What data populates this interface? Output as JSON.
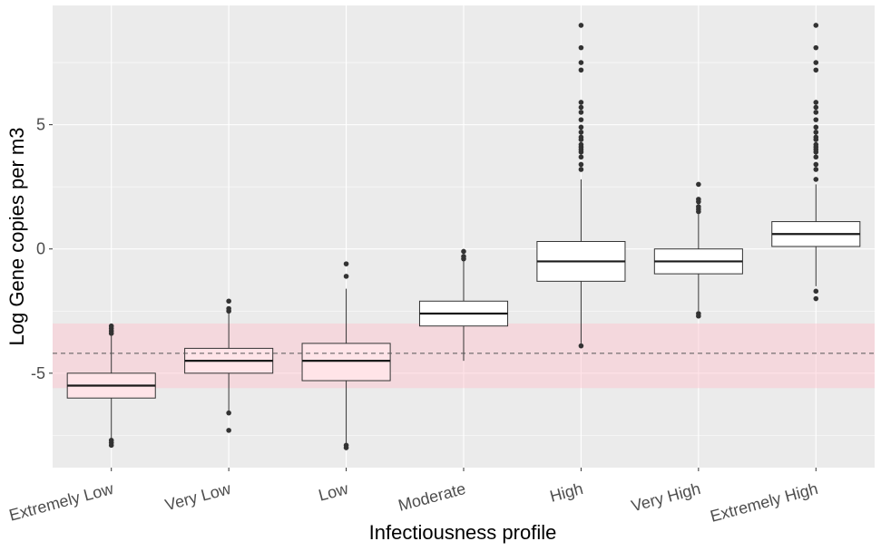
{
  "chart_data": {
    "type": "boxplot",
    "title": "",
    "xlabel": "Infectiousness profile",
    "ylabel": "Log Gene copies per m3",
    "categories": [
      "Extremely Low",
      "Very Low",
      "Low",
      "Moderate",
      "High",
      "Very High",
      "Extremely High"
    ],
    "y_ticks": [
      -5,
      0,
      5
    ],
    "y_tick_labels": [
      "-5",
      "0",
      "5"
    ],
    "ylim": [
      -8.8,
      9.8
    ],
    "grid": true,
    "legend": "none",
    "colors": {
      "panel_background": "#EBEBEB",
      "box_fill_in_band": "#FFE4E8",
      "box_fill_default": "#FFFFFF",
      "band_fill": "#FFC0CB",
      "reference_line": "#555555",
      "outlier": "#333333"
    },
    "threshold_band": {
      "ymin": -5.6,
      "ymax": -3.0
    },
    "reference_line": {
      "y": -4.2,
      "style": "dashed"
    },
    "boxes": [
      {
        "category": "Extremely Low",
        "whisker_low": -7.6,
        "q1": -6.0,
        "median": -5.5,
        "q3": -5.0,
        "whisker_high": -3.5,
        "outliers": [
          -3.1,
          -3.2,
          -3.3,
          -3.4,
          -7.7,
          -7.8,
          -7.9
        ]
      },
      {
        "category": "Very Low",
        "whisker_low": -6.6,
        "q1": -5.0,
        "median": -4.5,
        "q3": -4.0,
        "whisker_high": -2.5,
        "outliers": [
          -2.1,
          -2.4,
          -2.5,
          -6.6,
          -7.3
        ]
      },
      {
        "category": "Low",
        "whisker_low": -7.8,
        "q1": -5.3,
        "median": -4.5,
        "q3": -3.8,
        "whisker_high": -1.6,
        "outliers": [
          -0.6,
          -1.1,
          -7.9,
          -8.0
        ]
      },
      {
        "category": "Moderate",
        "whisker_low": -4.5,
        "q1": -3.1,
        "median": -2.6,
        "q3": -2.1,
        "whisker_high": -0.4,
        "outliers": [
          -0.1,
          -0.3,
          -0.4
        ]
      },
      {
        "category": "High",
        "whisker_low": -3.8,
        "q1": -1.3,
        "median": -0.5,
        "q3": 0.3,
        "whisker_high": 2.8,
        "outliers": [
          -3.9,
          3.2,
          3.4,
          3.7,
          3.9,
          4.0,
          4.1,
          4.2,
          4.4,
          4.5,
          4.7,
          4.9,
          5.2,
          5.5,
          5.7,
          5.9,
          7.2,
          7.5,
          8.1,
          9.0
        ]
      },
      {
        "category": "Very High",
        "whisker_low": -2.5,
        "q1": -1.0,
        "median": -0.5,
        "q3": 0.0,
        "whisker_high": 1.4,
        "outliers": [
          -2.6,
          -2.7,
          1.5,
          1.6,
          1.7,
          1.9,
          2.0,
          2.6
        ]
      },
      {
        "category": "Extremely High",
        "whisker_low": -1.5,
        "q1": 0.1,
        "median": 0.6,
        "q3": 1.1,
        "whisker_high": 2.6,
        "outliers": [
          -1.7,
          -2.0,
          2.8,
          3.2,
          3.4,
          3.7,
          3.9,
          4.0,
          4.1,
          4.2,
          4.4,
          4.5,
          4.7,
          4.9,
          5.2,
          5.5,
          5.7,
          5.9,
          7.2,
          7.5,
          8.1,
          9.0
        ]
      }
    ]
  }
}
